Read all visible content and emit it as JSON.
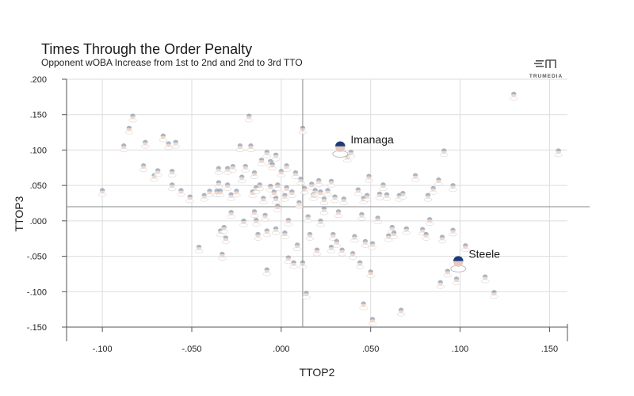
{
  "chart_data": {
    "type": "scatter",
    "title": "Times Through the Order Penalty",
    "subtitle": "Opponent wOBA Increase from 1st to 2nd and 2nd to 3rd TTO",
    "xlabel": "TTOP2",
    "ylabel": "TTOP3",
    "xlim": [
      -0.12,
      0.16
    ],
    "ylim": [
      -0.15,
      0.2
    ],
    "x_ticks": [
      -0.1,
      -0.05,
      0.0,
      0.05,
      0.1,
      0.15
    ],
    "x_tick_labels": [
      "-.100",
      "-.050",
      ".000",
      ".050",
      ".100",
      ".150"
    ],
    "y_ticks": [
      -0.15,
      -0.1,
      -0.05,
      0.0,
      0.05,
      0.1,
      0.15,
      0.2
    ],
    "y_tick_labels": [
      "-.150",
      "-.100",
      "-.050",
      ".000",
      ".050",
      ".100",
      ".150",
      ".200"
    ],
    "grid": true,
    "reference_lines": {
      "x": 0.012,
      "y": 0.02
    },
    "highlighted": [
      {
        "label": "Imanaga",
        "x": 0.033,
        "y": 0.104
      },
      {
        "label": "Steele",
        "x": 0.099,
        "y": -0.058
      }
    ],
    "points": [
      [
        -0.1,
        0.042
      ],
      [
        -0.088,
        0.105
      ],
      [
        -0.085,
        0.13
      ],
      [
        -0.083,
        0.147
      ],
      [
        -0.077,
        0.077
      ],
      [
        -0.076,
        0.11
      ],
      [
        -0.071,
        0.063
      ],
      [
        -0.069,
        0.07
      ],
      [
        -0.066,
        0.119
      ],
      [
        -0.063,
        0.108
      ],
      [
        -0.061,
        0.069
      ],
      [
        -0.061,
        0.05
      ],
      [
        -0.059,
        0.11
      ],
      [
        -0.056,
        0.042
      ],
      [
        -0.051,
        0.033
      ],
      [
        -0.046,
        -0.038
      ],
      [
        -0.043,
        0.035
      ],
      [
        -0.04,
        0.041
      ],
      [
        -0.036,
        0.041
      ],
      [
        -0.035,
        0.073
      ],
      [
        -0.035,
        0.053
      ],
      [
        -0.034,
        0.041
      ],
      [
        -0.034,
        -0.015
      ],
      [
        -0.033,
        -0.048
      ],
      [
        -0.032,
        -0.01
      ],
      [
        -0.031,
        -0.025
      ],
      [
        -0.03,
        0.073
      ],
      [
        -0.03,
        0.05
      ],
      [
        -0.028,
        0.011
      ],
      [
        -0.028,
        0.036
      ],
      [
        -0.027,
        0.076
      ],
      [
        -0.025,
        0.041
      ],
      [
        -0.023,
        0.105
      ],
      [
        -0.022,
        0.061
      ],
      [
        -0.021,
        -0.001
      ],
      [
        -0.02,
        0.076
      ],
      [
        -0.018,
        0.147
      ],
      [
        -0.017,
        0.105
      ],
      [
        -0.016,
        0.04
      ],
      [
        -0.015,
        0.067
      ],
      [
        -0.015,
        0.012
      ],
      [
        -0.014,
        0.0
      ],
      [
        -0.014,
        0.046
      ],
      [
        -0.013,
        -0.02
      ],
      [
        -0.012,
        0.05
      ],
      [
        -0.011,
        0.085
      ],
      [
        -0.01,
        0.031
      ],
      [
        -0.009,
        0.007
      ],
      [
        -0.008,
        -0.07
      ],
      [
        -0.008,
        0.096
      ],
      [
        -0.008,
        -0.015
      ],
      [
        -0.006,
        0.083
      ],
      [
        -0.006,
        0.048
      ],
      [
        -0.005,
        0.079
      ],
      [
        -0.004,
        0.04
      ],
      [
        -0.003,
        0.031
      ],
      [
        -0.003,
        -0.012
      ],
      [
        -0.003,
        0.092
      ],
      [
        -0.002,
        0.05
      ],
      [
        -0.002,
        0.02
      ],
      [
        0.0,
        0.069
      ],
      [
        0.002,
        0.035
      ],
      [
        0.002,
        -0.018
      ],
      [
        0.003,
        0.077
      ],
      [
        0.003,
        0.046
      ],
      [
        0.004,
        -0.053
      ],
      [
        0.004,
        0.0
      ],
      [
        0.006,
        0.04
      ],
      [
        0.007,
        -0.06
      ],
      [
        0.008,
        0.067
      ],
      [
        0.009,
        -0.035
      ],
      [
        0.01,
        0.025
      ],
      [
        0.011,
        0.058
      ],
      [
        0.012,
        0.13
      ],
      [
        0.012,
        -0.06
      ],
      [
        0.013,
        0.045
      ],
      [
        0.014,
        -0.103
      ],
      [
        0.015,
        0.005
      ],
      [
        0.016,
        -0.02
      ],
      [
        0.017,
        0.051
      ],
      [
        0.018,
        0.036
      ],
      [
        0.019,
        0.042
      ],
      [
        0.02,
        -0.042
      ],
      [
        0.021,
        0.056
      ],
      [
        0.022,
        0.04
      ],
      [
        0.022,
        -0.001
      ],
      [
        0.024,
        0.016
      ],
      [
        0.024,
        0.03
      ],
      [
        0.026,
        0.042
      ],
      [
        0.028,
        0.055
      ],
      [
        0.028,
        -0.038
      ],
      [
        0.029,
        -0.02
      ],
      [
        0.03,
        0.033
      ],
      [
        0.031,
        -0.03
      ],
      [
        0.032,
        0.012
      ],
      [
        0.034,
        -0.042
      ],
      [
        0.035,
        0.03
      ],
      [
        0.037,
        0.09
      ],
      [
        0.039,
        0.096
      ],
      [
        0.04,
        -0.047
      ],
      [
        0.041,
        -0.023
      ],
      [
        0.043,
        0.043
      ],
      [
        0.044,
        -0.06
      ],
      [
        0.045,
        0.008
      ],
      [
        0.046,
        -0.118
      ],
      [
        0.046,
        0.031
      ],
      [
        0.047,
        -0.03
      ],
      [
        0.048,
        0.035
      ],
      [
        0.049,
        0.062
      ],
      [
        0.05,
        -0.073
      ],
      [
        0.051,
        -0.14
      ],
      [
        0.051,
        -0.033
      ],
      [
        0.054,
        0.003
      ],
      [
        0.055,
        0.037
      ],
      [
        0.057,
        0.05
      ],
      [
        0.059,
        0.036
      ],
      [
        0.06,
        -0.022
      ],
      [
        0.062,
        -0.01
      ],
      [
        0.063,
        -0.018
      ],
      [
        0.066,
        0.035
      ],
      [
        0.067,
        -0.127
      ],
      [
        0.068,
        0.038
      ],
      [
        0.07,
        -0.012
      ],
      [
        0.075,
        0.063
      ],
      [
        0.079,
        -0.013
      ],
      [
        0.081,
        -0.02
      ],
      [
        0.082,
        0.035
      ],
      [
        0.083,
        0.001
      ],
      [
        0.085,
        0.045
      ],
      [
        0.088,
        0.057
      ],
      [
        0.089,
        -0.088
      ],
      [
        0.09,
        -0.024
      ],
      [
        0.091,
        0.098
      ],
      [
        0.093,
        -0.072
      ],
      [
        0.096,
        0.049
      ],
      [
        0.096,
        -0.014
      ],
      [
        0.098,
        -0.083
      ],
      [
        0.103,
        -0.036
      ],
      [
        0.114,
        -0.08
      ],
      [
        0.119,
        -0.102
      ],
      [
        0.13,
        0.178
      ],
      [
        0.155,
        0.098
      ]
    ]
  },
  "branding": {
    "logo_text": "TRUMEDIA"
  },
  "colors": {
    "grid": "#dddddd",
    "axis": "#555555",
    "reference_line": "#888888",
    "face": "#e8cbbd",
    "cap": "#8a98ad",
    "highlight_cap": "#1a3c7a"
  }
}
